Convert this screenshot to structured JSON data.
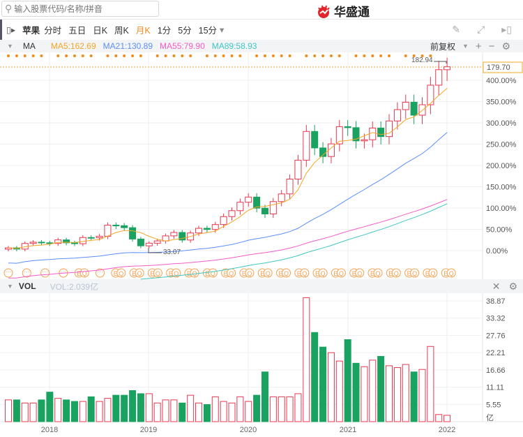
{
  "search": {
    "placeholder": "输入股票代码/名称/拼音"
  },
  "logo": {
    "text": "华盛通"
  },
  "toolbar": {
    "stock": "苹果",
    "periods": [
      "分时",
      "五日",
      "日K",
      "周K",
      "月K",
      "1分",
      "5分",
      "15分"
    ],
    "active": "月K",
    "more": "▾"
  },
  "ma": {
    "label": "MA",
    "items": [
      {
        "text": "MA5:162.69",
        "color": "#f5a623"
      },
      {
        "text": "MA21:130.89",
        "color": "#5b8ff9"
      },
      {
        "text": "MA55:79.90",
        "color": "#f45cc8"
      },
      {
        "text": "MA89:58.93",
        "color": "#3ec7c2"
      }
    ],
    "adjust": "前复权"
  },
  "price": {
    "current": "179.70",
    "high_label": "182.94",
    "low_label": "33.07",
    "axis": [
      "400.00%",
      "350.00%",
      "300.00%",
      "250.00%",
      "200.00%",
      "150.00%",
      "100.00%",
      "50.00%",
      "0.00%"
    ]
  },
  "vol": {
    "label": "VOL",
    "value": "VOL:2.039亿",
    "axis": [
      "38.87",
      "33.32",
      "27.76",
      "22.21",
      "16.66",
      "11.11",
      "5.55",
      "亿"
    ]
  },
  "xaxis": [
    "2018",
    "2019",
    "2020",
    "2021",
    "2022"
  ],
  "chart_data": {
    "type": "candlestick",
    "base_price": 33.8,
    "close": [
      36,
      35,
      39.5,
      40.5,
      40,
      39.5,
      42.3,
      40,
      39.3,
      44.2,
      44,
      45.2,
      54,
      53.6,
      52,
      43,
      37.6,
      39.7,
      41.5,
      45.5,
      48.2,
      42.2,
      47.8,
      51.5,
      50.6,
      54.5,
      60.8,
      65.5,
      72.2,
      76.3,
      67.5,
      62.9,
      72.7,
      78.8,
      90.6,
      105.6,
      128.4,
      115.3,
      108.5,
      118.5,
      132.2,
      131.4,
      120.9,
      121.8,
      131.1,
      124.3,
      136.7,
      145.7,
      151.6,
      141.3,
      149.6,
      165.1,
      177.4,
      179.7
    ],
    "volume": [
      7,
      7,
      6,
      6,
      7,
      9.5,
      7.5,
      7,
      6.5,
      6.5,
      8,
      6.5,
      7.5,
      8.5,
      8.5,
      10,
      9,
      9,
      6,
      7,
      7,
      6,
      8.5,
      6,
      5.5,
      8,
      6.5,
      6,
      8,
      6.5,
      8.5,
      16,
      8,
      8,
      8,
      9,
      39.9,
      28.7,
      24,
      22.2,
      19.5,
      26.4,
      18.8,
      17.7,
      19.8,
      21,
      18,
      17.4,
      18.4,
      16,
      16.8,
      24.2,
      2.3,
      2.04
    ],
    "markers_top": "dots",
    "markers_bottom": [
      "...",
      "...",
      "...",
      "...",
      "EQ",
      "...",
      "EQ",
      "EQ",
      "EQ",
      "EQ",
      "EQ",
      "EQ",
      "EQ",
      "EQ",
      "EQ",
      "EQ",
      "EQ",
      "EQ",
      "EQ",
      "EQ",
      "EQ",
      "EQ",
      "EQ",
      "EQ",
      "EQ"
    ]
  }
}
